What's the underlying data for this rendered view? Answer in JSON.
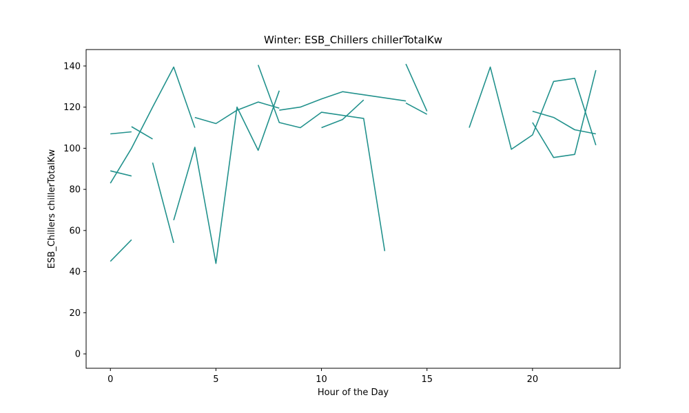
{
  "chart_data": {
    "type": "line",
    "title": "Winter: ESB_Chillers chillerTotalKw",
    "xlabel": "Hour of the Day",
    "ylabel": "ESB_Chillers chillerTotalKw",
    "xlim": [
      -1.15,
      24.15
    ],
    "ylim": [
      -7,
      148
    ],
    "xticks": [
      0,
      5,
      10,
      15,
      20
    ],
    "yticks": [
      0,
      20,
      40,
      60,
      80,
      100,
      120,
      140
    ],
    "grid": false,
    "legend": "none",
    "colors": {
      "teal": "#21918c",
      "yellow": "#fde725"
    },
    "x": [
      0,
      1,
      2,
      3,
      4,
      5,
      6,
      7,
      8,
      9,
      10,
      11,
      12,
      13,
      14,
      15,
      16,
      17,
      18,
      19,
      20,
      21,
      22,
      23
    ],
    "series": [
      {
        "color": "#21918c",
        "values": [
          107,
          108,
          null,
          null,
          null,
          null,
          null,
          null,
          118.5,
          120,
          124,
          127.5,
          126,
          124.5,
          123,
          null,
          null,
          null,
          null,
          null,
          118,
          115,
          109,
          107
        ]
      },
      {
        "color": "#21918c",
        "values": [
          83,
          100,
          120,
          139.5,
          110,
          null,
          null,
          null,
          null,
          null,
          null,
          null,
          null,
          null,
          null,
          null,
          null,
          null,
          null,
          null,
          null,
          null,
          null,
          null
        ]
      },
      {
        "color": "#21918c",
        "values": [
          null,
          110.5,
          104.5,
          null,
          115,
          112,
          118.5,
          122.5,
          119.5,
          null,
          110,
          114,
          123.5,
          null,
          null,
          null,
          null,
          null,
          null,
          null,
          null,
          null,
          null,
          null
        ]
      },
      {
        "color": "#21918c",
        "values": [
          null,
          null,
          null,
          null,
          null,
          null,
          null,
          null,
          null,
          null,
          null,
          null,
          null,
          null,
          141,
          118,
          null,
          110,
          139.5,
          99.5,
          106.5,
          132.5,
          134,
          101.5
        ]
      },
      {
        "color": "#21918c",
        "values": [
          null,
          null,
          null,
          null,
          null,
          null,
          null,
          null,
          null,
          null,
          null,
          null,
          null,
          null,
          122,
          116.5,
          null,
          110,
          null,
          null,
          112.5,
          95.5,
          97,
          138
        ]
      },
      {
        "color": "#21918c",
        "values": [
          null,
          null,
          null,
          65,
          100.5,
          44,
          120,
          99,
          128,
          null,
          null,
          null,
          null,
          null,
          null,
          null,
          null,
          null,
          null,
          null,
          null,
          null,
          null,
          null
        ]
      },
      {
        "color": "#21918c",
        "values": [
          null,
          null,
          null,
          null,
          null,
          null,
          null,
          140.5,
          112.5,
          110,
          117.5,
          116,
          114.5,
          50,
          null,
          null,
          null,
          null,
          null,
          null,
          null,
          null,
          null,
          null
        ]
      },
      {
        "color": "#21918c",
        "values": [
          89,
          86.5,
          null,
          null,
          null,
          null,
          null,
          null,
          null,
          null,
          null,
          null,
          null,
          null,
          null,
          null,
          null,
          null,
          null,
          null,
          null,
          null,
          null,
          null
        ]
      },
      {
        "color": "#21918c",
        "values": [
          45,
          55.5,
          null,
          null,
          null,
          null,
          null,
          null,
          null,
          null,
          null,
          null,
          null,
          null,
          null,
          null,
          null,
          null,
          null,
          null,
          null,
          null,
          null,
          null
        ]
      },
      {
        "color": "#21918c",
        "values": [
          null,
          null,
          93,
          54,
          null,
          null,
          null,
          null,
          null,
          null,
          null,
          null,
          null,
          null,
          null,
          null,
          null,
          null,
          null,
          null,
          null,
          null,
          null,
          null
        ]
      },
      {
        "color": "#21918c",
        "values": [
          null,
          null,
          null,
          null,
          null,
          null,
          null,
          null,
          null,
          null,
          null,
          null,
          null,
          null,
          null,
          null,
          null,
          null,
          null,
          null,
          null,
          null,
          null,
          null
        ]
      },
      {
        "color": "#21918c",
        "values": [
          null,
          null,
          null,
          null,
          null,
          null,
          null,
          null,
          null,
          null,
          null,
          null,
          null,
          null,
          null,
          null,
          null,
          null,
          null,
          null,
          null,
          null,
          null,
          null
        ]
      },
      {
        "color": "#21918c",
        "values": [
          45,
          null,
          null,
          null,
          null,
          null,
          null,
          null,
          null,
          null,
          null,
          null,
          null,
          null,
          null,
          null,
          null,
          null,
          null,
          null,
          null,
          null,
          null,
          null
        ]
      },
      {
        "color": "#21918c",
        "values": [
          null,
          null,
          null,
          null,
          null,
          null,
          null,
          null,
          null,
          null,
          null,
          null,
          null,
          null,
          null,
          null,
          null,
          null,
          null,
          null,
          null,
          null,
          null,
          null
        ]
      },
      {
        "color": "#21918c",
        "values": [
          null,
          null,
          null,
          null,
          null,
          null,
          null,
          null,
          null,
          null,
          null,
          null,
          null,
          null,
          null,
          null,
          null,
          null,
          null,
          null,
          null,
          null,
          null,
          null
        ]
      },
      {
        "color": "#21918c",
        "values": [
          null,
          null,
          null,
          null,
          null,
          null,
          null,
          null,
          null,
          null,
          null,
          null,
          null,
          null,
          null,
          null,
          null,
          null,
          null,
          null,
          null,
          null,
          null,
          null
        ]
      },
      {
        "color": "#21918c",
        "values": [
          null,
          null,
          null,
          null,
          null,
          null,
          null,
          null,
          null,
          null,
          null,
          null,
          null,
          null,
          null,
          null,
          null,
          null,
          null,
          null,
          null,
          null,
          null,
          null
        ]
      },
      {
        "color": "#21918c",
        "values": [
          null,
          null,
          null,
          null,
          null,
          null,
          null,
          null,
          null,
          null,
          null,
          null,
          null,
          null,
          null,
          null,
          null,
          null,
          null,
          null,
          null,
          null,
          null,
          null
        ]
      },
      {
        "color": "#21918c",
        "values": [
          null,
          null,
          null,
          null,
          null,
          null,
          null,
          null,
          null,
          null,
          null,
          null,
          null,
          null,
          null,
          null,
          null,
          null,
          null,
          null,
          null,
          null,
          null,
          null
        ]
      },
      {
        "color": "#21918c",
        "values": [
          null,
          null,
          null,
          null,
          null,
          null,
          null,
          null,
          null,
          null,
          null,
          null,
          null,
          null,
          null,
          null,
          null,
          null,
          null,
          null,
          null,
          null,
          null,
          null
        ]
      }
    ]
  }
}
